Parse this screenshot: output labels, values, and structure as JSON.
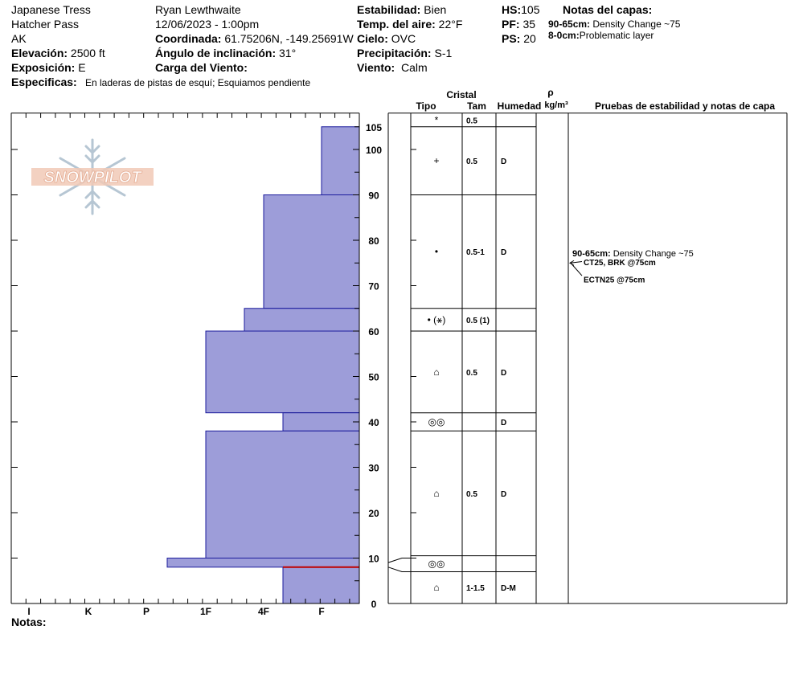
{
  "header": {
    "location": "Japanese Tress",
    "area": "Hatcher Pass",
    "state": "AK",
    "elevation_label": "Elevación:",
    "elevation": "2500 ft",
    "aspect_label": "Exposición:",
    "aspect": "E",
    "observer": "Ryan Lewthwaite",
    "datetime": "12/06/2023 - 1:00pm",
    "coord_label": "Coordinada:",
    "coord": "61.75206N, -149.25691W",
    "slope_label": "Ángulo de inclinación:",
    "slope": "31°",
    "wind_load_label": "Carga del Viento:",
    "wind_load": "",
    "stability_label": "Estabilidad:",
    "stability": "Bien",
    "air_temp_label": "Temp. del aire:",
    "air_temp": "22°F",
    "sky_label": "Cielo:",
    "sky": "OVC",
    "precip_label": "Precipitación:",
    "precip": "S-1",
    "wind_label": "Viento:",
    "wind": "Calm",
    "hs_label": "HS:",
    "hs": "105",
    "pf_label": "PF:",
    "pf": "35",
    "ps_label": "PS:",
    "ps": "20",
    "layer_notes_title": "Notas del capas:",
    "layer_notes": [
      {
        "range": "90-65cm:",
        "text": "Density Change ~75"
      },
      {
        "range": "8-0cm:",
        "text": "Problematic layer"
      }
    ],
    "specifics_label": "Especificas:",
    "specifics": "En laderas de pistas de esquí; Esquiamos pendiente"
  },
  "logo_text": "SNOWPILOT",
  "footer": {
    "notes_label": "Notas:"
  },
  "table": {
    "crystal_label": "Cristal",
    "type_label": "Tipo",
    "size_label": "Tam",
    "moisture_label": "Humedad",
    "density_symbol": "ρ",
    "density_unit": "kg/m³",
    "tests_label": "Pruebas de estabilidad y notas de capa"
  },
  "chart_data": {
    "type": "snow_profile",
    "hs_cm": 105,
    "ylim": [
      0,
      108
    ],
    "y_ticks": [
      0,
      10,
      20,
      30,
      40,
      50,
      60,
      70,
      80,
      90,
      100,
      105
    ],
    "hardness_scale": [
      "I",
      "K",
      "P",
      "1F",
      "4F",
      "F"
    ],
    "layers": [
      {
        "top": 105,
        "bottom": 90,
        "hardness": "F",
        "grain": "+",
        "size": "0.5",
        "moisture": "D"
      },
      {
        "top": 90,
        "bottom": 65,
        "hardness": "4F",
        "grain": "•",
        "size": "0.5-1",
        "moisture": "D"
      },
      {
        "top": 65,
        "bottom": 60,
        "hardness": "4F-",
        "grain": "• (⚹)",
        "size": "0.5 (1)",
        "moisture": ""
      },
      {
        "top": 60,
        "bottom": 42,
        "hardness": "1F",
        "grain": "⌂",
        "size": "0.5",
        "moisture": "D"
      },
      {
        "top": 42,
        "bottom": 38,
        "hardness": "F+",
        "grain": "◎◎",
        "size": "",
        "moisture": "D"
      },
      {
        "top": 38,
        "bottom": 10,
        "hardness": "1F",
        "grain": "⌂",
        "size": "0.5",
        "moisture": "D"
      },
      {
        "top": 10,
        "bottom": 8,
        "hardness": "1F-",
        "grain": "◎◎",
        "size": "",
        "moisture": ""
      },
      {
        "top": 8,
        "bottom": 0,
        "hardness": "F+",
        "grain": "⌂",
        "size": "1-1.5",
        "moisture": "D-M"
      }
    ],
    "new_snow_layer": {
      "top": 108,
      "bottom": 105,
      "grain": "*",
      "size": "0.5"
    },
    "problem_layer_depth": 8,
    "test_notes": [
      {
        "text_bold": "90-65cm:",
        "text": "Density Change ~75",
        "depth": 75
      },
      {
        "text_bold": "CT25, BRK @75cm",
        "depth": 75
      },
      {
        "text_bold": "ECTN25 @75cm",
        "depth": 75
      }
    ]
  }
}
